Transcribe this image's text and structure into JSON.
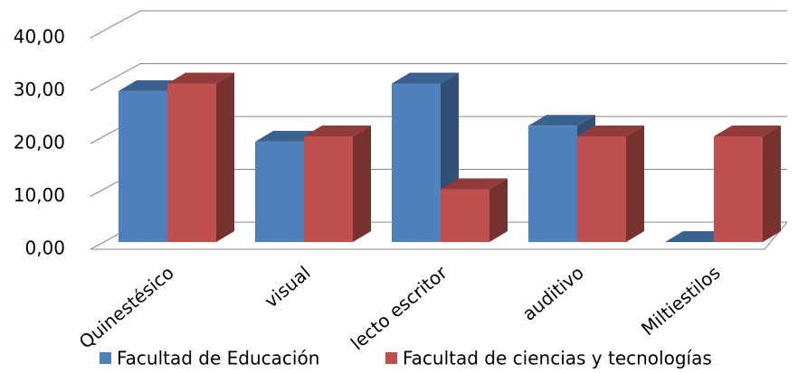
{
  "chart_data": {
    "type": "bar3d",
    "categories": [
      "Quinestésico",
      "visual",
      "lecto escritor",
      "auditivo",
      "Miltiestilos"
    ],
    "series": [
      {
        "name": "Facultad de Educación",
        "color": "#4f81bd",
        "values": [
          28.57,
          19,
          30,
          22,
          0
        ]
      },
      {
        "name": "Facultad de ciencias y tecnologías",
        "color": "#c0504d",
        "values": [
          30,
          20,
          10,
          20,
          20
        ]
      }
    ],
    "ylim": [
      0,
      40
    ],
    "yticks": [
      {
        "value": 0,
        "label": "0,00"
      },
      {
        "value": 10,
        "label": "10,00"
      },
      {
        "value": 20,
        "label": "20,00"
      },
      {
        "value": 30,
        "label": "30,00"
      },
      {
        "value": 40,
        "label": "40,00"
      }
    ],
    "grid": true,
    "legend": "bottom"
  }
}
